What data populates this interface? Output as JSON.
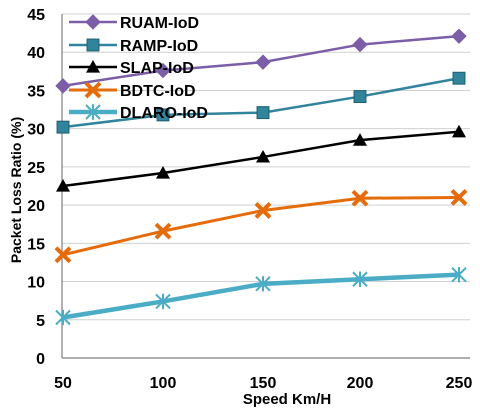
{
  "chart_data": {
    "type": "line",
    "title": "",
    "xlabel": "Speed Km/H",
    "ylabel": "Packet Loss Ratio (%)",
    "x": [
      50,
      100,
      150,
      200,
      250
    ],
    "x_tick_labels": [
      "50",
      "100",
      "150",
      "200",
      "250"
    ],
    "ylim": [
      0,
      45
    ],
    "y_ticks": [
      0,
      5,
      10,
      15,
      20,
      25,
      30,
      35,
      40,
      45
    ],
    "grid": "horizontal",
    "legend_position": "top-left",
    "series": [
      {
        "name": "RUAM-IoD",
        "values": [
          35.6,
          37.6,
          38.7,
          41.0,
          42.1
        ],
        "color": "#7B5EA7",
        "marker": "diamond"
      },
      {
        "name": "RAMP-IoD",
        "values": [
          30.2,
          31.8,
          32.1,
          34.2,
          36.6
        ],
        "color": "#31849B",
        "marker": "square"
      },
      {
        "name": "SLAP-IoD",
        "values": [
          22.5,
          24.2,
          26.3,
          28.5,
          29.6
        ],
        "color": "#000000",
        "marker": "triangle"
      },
      {
        "name": "BDTC-IoD",
        "values": [
          13.5,
          16.6,
          19.3,
          20.9,
          21.0
        ],
        "color": "#E46C0A",
        "marker": "x"
      },
      {
        "name": "DLARO-IoD",
        "values": [
          5.3,
          7.4,
          9.7,
          10.3,
          10.9
        ],
        "color": "#4BACC6",
        "marker": "star"
      }
    ]
  }
}
